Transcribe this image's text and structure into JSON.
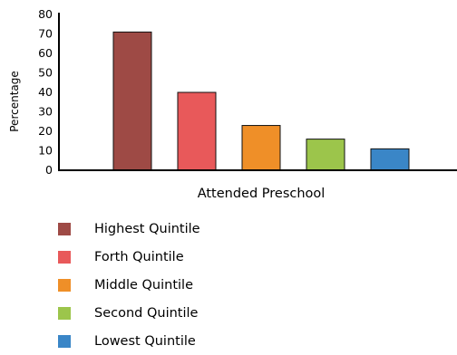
{
  "chart_data": {
    "type": "bar",
    "categories": [
      "Highest Quintile",
      "Forth Quintile",
      "Middle Quintile",
      "Second Quintile",
      "Lowest Quintile"
    ],
    "values": [
      71,
      40,
      23,
      16,
      11
    ],
    "colors": [
      "#9e4a45",
      "#e8595a",
      "#ef8f28",
      "#9cc54b",
      "#3a86c7"
    ],
    "xlabel": "Attended Preschool",
    "ylabel": "Percentage",
    "ylim": [
      0,
      80
    ],
    "yticks": [
      0,
      10,
      20,
      30,
      40,
      50,
      60,
      70,
      80
    ],
    "grid": false,
    "legend_position": "bottom"
  }
}
